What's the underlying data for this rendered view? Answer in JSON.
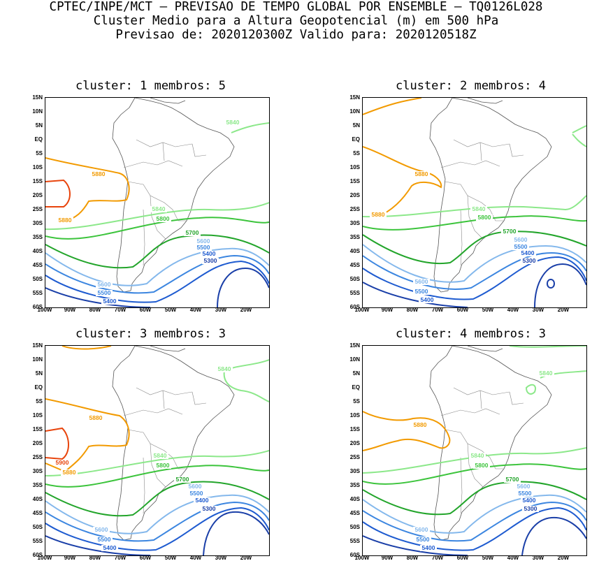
{
  "header": {
    "line1": "CPTEC/INPE/MCT – PREVISAO DE TEMPO GLOBAL POR ENSEMBLE – TQ0126L028",
    "line2": "Cluster Medio para a Altura Geopotencial (m) em 500 hPa",
    "line3": "Previsao de: 2020120300Z   Valido para: 2020120518Z"
  },
  "axes": {
    "lat_labels": [
      "15N",
      "10N",
      "5N",
      "EQ",
      "5S",
      "10S",
      "15S",
      "20S",
      "25S",
      "30S",
      "35S",
      "40S",
      "45S",
      "50S",
      "55S",
      "60S"
    ],
    "lon_labels": [
      "100W",
      "90W",
      "80W",
      "70W",
      "60W",
      "50W",
      "40W",
      "30W",
      "20W"
    ]
  },
  "colors": {
    "c5300": "#1a3fa8",
    "c5400": "#1e5bd0",
    "c5500": "#3c86e0",
    "c5600": "#84b8ec",
    "c5700": "#23a52b",
    "c5800": "#3cc43c",
    "c5840": "#8ce88a",
    "c5880": "#f29a00",
    "c5900": "#e8440c"
  },
  "panels": [
    {
      "title": "cluster: 1   membros: 5",
      "labels": {
        "l5840a": "5840",
        "l5880a": "5880",
        "l5880b": "5880",
        "l5840b": "5840",
        "l5800": "5800",
        "l5700": "5700",
        "l5600a": "5600",
        "l5500a": "5500",
        "l5400a": "5400",
        "l5300": "5300",
        "l5600b": "5600",
        "l5500b": "5500",
        "l5400b": "5400"
      }
    },
    {
      "title": "cluster: 2   membros: 4",
      "labels": {
        "l5880a": "5880",
        "l5880b": "5880",
        "l5840b": "5840",
        "l5800": "5800",
        "l5700": "5700",
        "l5600a": "5600",
        "l5500a": "5500",
        "l5400a": "5400",
        "l5300": "5300",
        "l5600b": "5600",
        "l5500b": "5500",
        "l5400b": "5400"
      }
    },
    {
      "title": "cluster: 3   membros: 3",
      "labels": {
        "l5840a": "5840",
        "l5880a": "5880",
        "l5900": "5900",
        "l5880b": "5880",
        "l5840b": "5840",
        "l5800": "5800",
        "l5700": "5700",
        "l5600a": "5600",
        "l5500a": "5500",
        "l5400a": "5400",
        "l5300": "5300",
        "l5600b": "5600",
        "l5500b": "5500",
        "l5400b": "5400"
      }
    },
    {
      "title": "cluster: 4   membros: 3",
      "labels": {
        "l5840a": "5840",
        "l5880a": "5880",
        "l5840b": "5840",
        "l5800": "5800",
        "l5700": "5700",
        "l5600a": "5600",
        "l5500a": "5500",
        "l5400a": "5400",
        "l5300": "5300",
        "l5600b": "5600",
        "l5500b": "5500",
        "l5400b": "5400"
      }
    }
  ]
}
